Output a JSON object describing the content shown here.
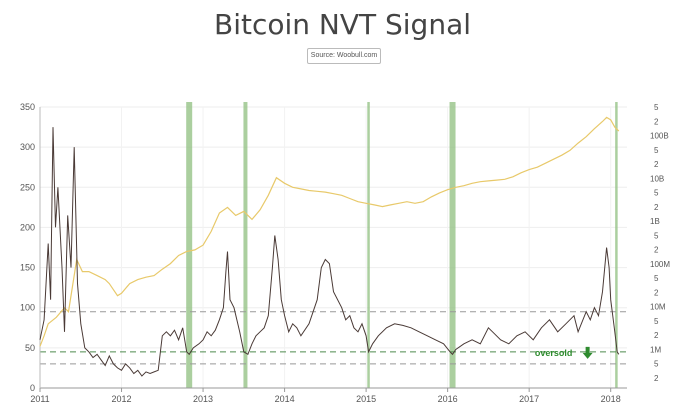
{
  "title": "Bitcoin NVT Signal",
  "source": "Source: Woobull.com",
  "chart_data": {
    "type": "line",
    "title": "Bitcoin NVT Signal",
    "x_range": [
      2011.0,
      2018.2
    ],
    "ylim": [
      0,
      350
    ],
    "grid": true,
    "x_ticks": [
      "2011",
      "2012",
      "2013",
      "2014",
      "2015",
      "2016",
      "2017",
      "2018"
    ],
    "y_ticks": [
      "0",
      "50",
      "100",
      "150",
      "200",
      "250",
      "300",
      "350"
    ],
    "right_axis": {
      "scale": "log",
      "range": [
        300000,
        500000000000
      ],
      "labels": [
        "5",
        "2",
        "100B",
        "5",
        "2",
        "10B",
        "5",
        "2",
        "1B",
        "5",
        "2",
        "100M",
        "5",
        "2",
        "10M",
        "5",
        "2",
        "1M",
        "5",
        "2"
      ]
    },
    "reference_lines": [
      {
        "y": 95,
        "style": "dashed",
        "color": "#999999"
      },
      {
        "y": 45,
        "style": "dashed",
        "color": "#4d8a4d"
      },
      {
        "y": 30,
        "style": "dashed",
        "color": "#999999"
      }
    ],
    "highlight_bands": [
      {
        "x": 2012.83,
        "width": "thick"
      },
      {
        "x": 2013.52,
        "width": "medium"
      },
      {
        "x": 2015.03,
        "width": "thin"
      },
      {
        "x": 2016.06,
        "width": "thick"
      },
      {
        "x": 2018.07,
        "width": "thin"
      }
    ],
    "annotation": {
      "text": "oversold",
      "x": 2017.3,
      "y": 40
    },
    "series": [
      {
        "color": "#4a3a36",
        "axis": "left",
        "points": [
          [
            2011.0,
            60
          ],
          [
            2011.05,
            85
          ],
          [
            2011.1,
            180
          ],
          [
            2011.13,
            110
          ],
          [
            2011.16,
            325
          ],
          [
            2011.19,
            200
          ],
          [
            2011.22,
            250
          ],
          [
            2011.27,
            150
          ],
          [
            2011.3,
            70
          ],
          [
            2011.34,
            215
          ],
          [
            2011.38,
            150
          ],
          [
            2011.42,
            300
          ],
          [
            2011.46,
            130
          ],
          [
            2011.5,
            80
          ],
          [
            2011.55,
            50
          ],
          [
            2011.6,
            45
          ],
          [
            2011.65,
            38
          ],
          [
            2011.7,
            42
          ],
          [
            2011.75,
            35
          ],
          [
            2011.8,
            28
          ],
          [
            2011.85,
            40
          ],
          [
            2011.9,
            30
          ],
          [
            2011.95,
            25
          ],
          [
            2012.0,
            22
          ],
          [
            2012.05,
            30
          ],
          [
            2012.1,
            25
          ],
          [
            2012.15,
            18
          ],
          [
            2012.2,
            22
          ],
          [
            2012.25,
            15
          ],
          [
            2012.3,
            20
          ],
          [
            2012.35,
            18
          ],
          [
            2012.4,
            20
          ],
          [
            2012.45,
            22
          ],
          [
            2012.5,
            65
          ],
          [
            2012.55,
            70
          ],
          [
            2012.6,
            65
          ],
          [
            2012.65,
            72
          ],
          [
            2012.7,
            60
          ],
          [
            2012.75,
            75
          ],
          [
            2012.8,
            45
          ],
          [
            2012.83,
            42
          ],
          [
            2012.88,
            50
          ],
          [
            2012.95,
            55
          ],
          [
            2013.0,
            60
          ],
          [
            2013.05,
            70
          ],
          [
            2013.1,
            65
          ],
          [
            2013.15,
            72
          ],
          [
            2013.2,
            85
          ],
          [
            2013.25,
            100
          ],
          [
            2013.28,
            145
          ],
          [
            2013.3,
            170
          ],
          [
            2013.33,
            110
          ],
          [
            2013.38,
            100
          ],
          [
            2013.45,
            70
          ],
          [
            2013.5,
            45
          ],
          [
            2013.55,
            42
          ],
          [
            2013.6,
            55
          ],
          [
            2013.65,
            65
          ],
          [
            2013.7,
            70
          ],
          [
            2013.75,
            75
          ],
          [
            2013.8,
            90
          ],
          [
            2013.85,
            150
          ],
          [
            2013.88,
            190
          ],
          [
            2013.92,
            160
          ],
          [
            2013.96,
            110
          ],
          [
            2014.0,
            90
          ],
          [
            2014.05,
            70
          ],
          [
            2014.1,
            80
          ],
          [
            2014.15,
            75
          ],
          [
            2014.2,
            65
          ],
          [
            2014.3,
            80
          ],
          [
            2014.4,
            110
          ],
          [
            2014.45,
            150
          ],
          [
            2014.5,
            160
          ],
          [
            2014.55,
            155
          ],
          [
            2014.6,
            120
          ],
          [
            2014.7,
            100
          ],
          [
            2014.75,
            85
          ],
          [
            2014.8,
            90
          ],
          [
            2014.85,
            75
          ],
          [
            2014.9,
            70
          ],
          [
            2014.95,
            80
          ],
          [
            2015.0,
            65
          ],
          [
            2015.03,
            45
          ],
          [
            2015.08,
            55
          ],
          [
            2015.15,
            65
          ],
          [
            2015.25,
            75
          ],
          [
            2015.35,
            80
          ],
          [
            2015.45,
            78
          ],
          [
            2015.55,
            75
          ],
          [
            2015.65,
            70
          ],
          [
            2015.75,
            65
          ],
          [
            2015.85,
            60
          ],
          [
            2015.95,
            55
          ],
          [
            2016.03,
            45
          ],
          [
            2016.06,
            42
          ],
          [
            2016.1,
            48
          ],
          [
            2016.2,
            55
          ],
          [
            2016.3,
            60
          ],
          [
            2016.4,
            55
          ],
          [
            2016.5,
            75
          ],
          [
            2016.55,
            70
          ],
          [
            2016.65,
            60
          ],
          [
            2016.75,
            55
          ],
          [
            2016.85,
            65
          ],
          [
            2016.95,
            70
          ],
          [
            2017.05,
            60
          ],
          [
            2017.15,
            75
          ],
          [
            2017.25,
            85
          ],
          [
            2017.35,
            70
          ],
          [
            2017.45,
            80
          ],
          [
            2017.55,
            90
          ],
          [
            2017.6,
            70
          ],
          [
            2017.7,
            95
          ],
          [
            2017.75,
            85
          ],
          [
            2017.8,
            100
          ],
          [
            2017.85,
            90
          ],
          [
            2017.9,
            120
          ],
          [
            2017.95,
            175
          ],
          [
            2017.98,
            150
          ],
          [
            2018.0,
            110
          ],
          [
            2018.05,
            70
          ],
          [
            2018.08,
            45
          ],
          [
            2018.1,
            42
          ]
        ]
      },
      {
        "color": "#e8c96a",
        "axis": "right",
        "points": [
          [
            2011.0,
            52
          ],
          [
            2011.05,
            65
          ],
          [
            2011.1,
            80
          ],
          [
            2011.2,
            88
          ],
          [
            2011.3,
            100
          ],
          [
            2011.35,
            95
          ],
          [
            2011.45,
            160
          ],
          [
            2011.52,
            145
          ],
          [
            2011.6,
            145
          ],
          [
            2011.7,
            140
          ],
          [
            2011.8,
            135
          ],
          [
            2011.85,
            130
          ],
          [
            2011.95,
            115
          ],
          [
            2012.0,
            118
          ],
          [
            2012.1,
            130
          ],
          [
            2012.2,
            135
          ],
          [
            2012.3,
            138
          ],
          [
            2012.4,
            140
          ],
          [
            2012.5,
            148
          ],
          [
            2012.6,
            155
          ],
          [
            2012.7,
            165
          ],
          [
            2012.8,
            170
          ],
          [
            2012.9,
            172
          ],
          [
            2013.0,
            178
          ],
          [
            2013.1,
            195
          ],
          [
            2013.2,
            218
          ],
          [
            2013.3,
            225
          ],
          [
            2013.4,
            215
          ],
          [
            2013.5,
            220
          ],
          [
            2013.6,
            210
          ],
          [
            2013.7,
            222
          ],
          [
            2013.8,
            240
          ],
          [
            2013.9,
            262
          ],
          [
            2014.0,
            255
          ],
          [
            2014.1,
            250
          ],
          [
            2014.2,
            248
          ],
          [
            2014.3,
            246
          ],
          [
            2014.4,
            245
          ],
          [
            2014.5,
            244
          ],
          [
            2014.6,
            242
          ],
          [
            2014.7,
            240
          ],
          [
            2014.8,
            236
          ],
          [
            2014.9,
            232
          ],
          [
            2015.0,
            230
          ],
          [
            2015.1,
            228
          ],
          [
            2015.2,
            226
          ],
          [
            2015.3,
            228
          ],
          [
            2015.4,
            230
          ],
          [
            2015.5,
            232
          ],
          [
            2015.6,
            230
          ],
          [
            2015.7,
            232
          ],
          [
            2015.8,
            238
          ],
          [
            2015.9,
            243
          ],
          [
            2016.0,
            247
          ],
          [
            2016.1,
            250
          ],
          [
            2016.2,
            252
          ],
          [
            2016.3,
            255
          ],
          [
            2016.4,
            257
          ],
          [
            2016.5,
            258
          ],
          [
            2016.6,
            259
          ],
          [
            2016.7,
            260
          ],
          [
            2016.8,
            263
          ],
          [
            2016.9,
            268
          ],
          [
            2017.0,
            272
          ],
          [
            2017.1,
            275
          ],
          [
            2017.2,
            280
          ],
          [
            2017.3,
            285
          ],
          [
            2017.4,
            290
          ],
          [
            2017.5,
            296
          ],
          [
            2017.6,
            305
          ],
          [
            2017.7,
            313
          ],
          [
            2017.8,
            323
          ],
          [
            2017.9,
            332
          ],
          [
            2017.95,
            337
          ],
          [
            2018.0,
            334
          ],
          [
            2018.05,
            325
          ],
          [
            2018.1,
            320
          ]
        ]
      }
    ]
  }
}
